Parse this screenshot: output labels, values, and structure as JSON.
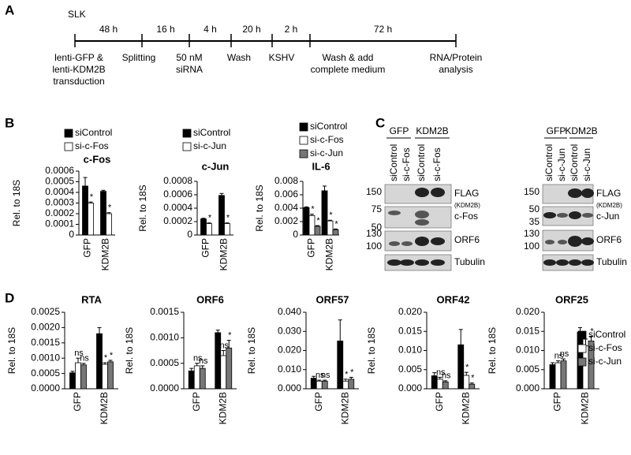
{
  "panels": [
    "A",
    "B",
    "C",
    "D"
  ],
  "timeline": {
    "cell_line": "SLK",
    "durations": [
      "48 h",
      "16 h",
      "4 h",
      "20 h",
      "2 h",
      "72 h"
    ],
    "steps": [
      {
        "lines": [
          "lenti-GFP &",
          "lenti-KDM2B",
          "transduction"
        ]
      },
      {
        "lines": [
          "Splitting"
        ]
      },
      {
        "lines": [
          "50 nM",
          "siRNA"
        ]
      },
      {
        "lines": [
          "Wash"
        ]
      },
      {
        "lines": [
          "KSHV"
        ]
      },
      {
        "lines": [
          "Wash & add",
          "complete medium"
        ]
      },
      {
        "lines": [
          "RNA/Protein",
          "analysis"
        ]
      }
    ]
  },
  "blots": [
    {
      "groups": [
        "GFP",
        "KDM2B"
      ],
      "lanes": [
        "siControl",
        "si-c-Fos",
        "siControl",
        "si-c-Fos"
      ],
      "rows": [
        {
          "label": "FLAG",
          "sublabel": "(KDM2B)",
          "markers": [
            "150"
          ]
        },
        {
          "label": "c-Fos",
          "markers": [
            "75",
            "50"
          ]
        },
        {
          "label": "ORF6",
          "markers": [
            "130",
            "100"
          ]
        },
        {
          "label": "Tubulin",
          "markers": []
        }
      ]
    },
    {
      "groups": [
        "GFP",
        "KDM2B"
      ],
      "lanes": [
        "siControl",
        "si-c-Jun",
        "siControl",
        "si-c-Jun"
      ],
      "rows": [
        {
          "label": "FLAG",
          "sublabel": "(KDM2B)",
          "markers": [
            "150"
          ]
        },
        {
          "label": "c-Jun",
          "markers": [
            "50",
            "35"
          ]
        },
        {
          "label": "ORF6",
          "markers": [
            "130",
            "100"
          ]
        },
        {
          "label": "Tubulin",
          "markers": []
        }
      ]
    }
  ],
  "chart_data": [
    {
      "type": "bar",
      "title": "c-Fos",
      "ylabel": "Rel. to 18S",
      "categories": [
        "GFP",
        "KDM2B"
      ],
      "legend": "top",
      "ylim": [
        0,
        0.0006
      ],
      "yticks": [
        0,
        0.0001,
        0.0002,
        0.0003,
        0.0004,
        0.0005,
        0.0006
      ],
      "series": [
        {
          "name": "siControl",
          "color": "#000000",
          "values": [
            0.00046,
            0.00041
          ],
          "errors": [
            8e-05,
            1e-05
          ],
          "annotations": [
            null,
            null
          ]
        },
        {
          "name": "si-c-Fos",
          "color": "#ffffff",
          "values": [
            0.0003,
            0.0002
          ],
          "errors": [
            1e-05,
            1e-05
          ],
          "annotations": [
            "*",
            "*"
          ]
        }
      ]
    },
    {
      "type": "bar",
      "title": "c-Jun",
      "ylabel": "Rel. to 18S",
      "categories": [
        "GFP",
        "KDM2B"
      ],
      "legend": "top",
      "ylim": [
        0,
        0.0008
      ],
      "yticks": [
        0,
        0.0002,
        0.0004,
        0.0006,
        0.0008
      ],
      "series": [
        {
          "name": "siControl",
          "color": "#000000",
          "values": [
            0.00024,
            0.00059
          ],
          "errors": [
            1e-05,
            3e-05
          ],
          "annotations": [
            null,
            null
          ]
        },
        {
          "name": "si-c-Jun",
          "color": "#ffffff",
          "values": [
            0.00017,
            0.00017
          ],
          "errors": [
            1e-05,
            1e-05
          ],
          "annotations": [
            "*",
            "*"
          ]
        }
      ]
    },
    {
      "type": "bar",
      "title": "IL-6",
      "ylabel": "Rel. to 18S",
      "categories": [
        "GFP",
        "KDM2B"
      ],
      "legend": "top",
      "ylim": [
        0,
        0.008
      ],
      "yticks": [
        0,
        0.002,
        0.004,
        0.006,
        0.008
      ],
      "series": [
        {
          "name": "siControl",
          "color": "#000000",
          "values": [
            0.0041,
            0.0066
          ],
          "errors": [
            0.0001,
            0.0007
          ],
          "annotations": [
            null,
            null
          ]
        },
        {
          "name": "si-c-Fos",
          "color": "#ffffff",
          "values": [
            0.0029,
            0.0021
          ],
          "errors": [
            0.0002,
            0.0001
          ],
          "annotations": [
            "*",
            "*"
          ]
        },
        {
          "name": "si-c-Jun",
          "color": "#777777",
          "values": [
            0.0013,
            0.0008
          ],
          "errors": [
            0.0001,
            0.0001
          ],
          "annotations": [
            "*",
            "*"
          ]
        }
      ]
    },
    {
      "type": "bar",
      "title": "RTA",
      "ylabel": "Rel. to 18S",
      "categories": [
        "GFP",
        "KDM2B"
      ],
      "ylim": [
        0,
        0.0025
      ],
      "yticks": [
        {
          "value": 0,
          "label": "0.0000"
        },
        0.0005,
        {
          "value": 0.001,
          "label": "0.0010"
        },
        0.0015,
        {
          "value": 0.002,
          "label": "0.0020"
        },
        0.0025
      ],
      "series": [
        {
          "name": "siControl",
          "color": "#000000",
          "values": [
            0.00052,
            0.0018
          ],
          "errors": [
            5e-05,
            0.0002
          ],
          "annotations": [
            null,
            null
          ]
        },
        {
          "name": "si-c-Fos",
          "color": "#ffffff",
          "values": [
            0.00085,
            0.0008
          ],
          "errors": [
            0.00015,
            5e-05
          ],
          "annotations": [
            "ns",
            "*"
          ]
        },
        {
          "name": "si-c-Jun",
          "color": "#777777",
          "values": [
            0.00078,
            0.00088
          ],
          "errors": [
            5e-05,
            5e-05
          ],
          "annotations": [
            "ns",
            "*"
          ]
        }
      ]
    },
    {
      "type": "bar",
      "title": "ORF6",
      "ylabel": "Rel. to 18S",
      "categories": [
        "GFP",
        "KDM2B"
      ],
      "ylim": [
        0,
        0.0015
      ],
      "yticks": [
        {
          "value": 0,
          "label": "0.0000"
        },
        0.0005,
        {
          "value": 0.001,
          "label": "0.0010"
        },
        0.0015
      ],
      "series": [
        {
          "name": "siControl",
          "color": "#000000",
          "values": [
            0.00035,
            0.0011
          ],
          "errors": [
            5e-05,
            5e-05
          ],
          "annotations": [
            null,
            null
          ]
        },
        {
          "name": "si-c-Fos",
          "color": "#ffffff",
          "values": [
            0.00045,
            0.00065
          ],
          "errors": [
            5e-05,
            0.0001
          ],
          "annotations": [
            "ns",
            "ns"
          ]
        },
        {
          "name": "si-c-Jun",
          "color": "#777777",
          "values": [
            0.0004,
            0.0008
          ],
          "errors": [
            5e-05,
            0.00015
          ],
          "annotations": [
            "ns",
            "*"
          ]
        }
      ]
    },
    {
      "type": "bar",
      "title": "ORF57",
      "ylabel": "Rel. to 18S",
      "categories": [
        "GFP",
        "KDM2B"
      ],
      "ylim": [
        0,
        0.04
      ],
      "yticks": [
        {
          "value": 0,
          "label": "0.000"
        },
        {
          "value": 0.01,
          "label": "0.010"
        },
        {
          "value": 0.02,
          "label": "0.020"
        },
        {
          "value": 0.03,
          "label": "0.030"
        },
        {
          "value": 0.04,
          "label": "0.040"
        }
      ],
      "series": [
        {
          "name": "siControl",
          "color": "#000000",
          "values": [
            0.0055,
            0.025
          ],
          "errors": [
            0.001,
            0.011
          ],
          "annotations": [
            null,
            null
          ]
        },
        {
          "name": "si-c-Fos",
          "color": "#ffffff",
          "values": [
            0.004,
            0.004
          ],
          "errors": [
            0.0005,
            0.001
          ],
          "annotations": [
            "ns",
            "*"
          ]
        },
        {
          "name": "si-c-Jun",
          "color": "#777777",
          "values": [
            0.004,
            0.005
          ],
          "errors": [
            0.0005,
            0.001
          ],
          "annotations": [
            "ns",
            "*"
          ]
        }
      ]
    },
    {
      "type": "bar",
      "title": "ORF42",
      "ylabel": "Rel. to 18S",
      "categories": [
        "GFP",
        "KDM2B"
      ],
      "ylim": [
        0,
        0.02
      ],
      "yticks": [
        {
          "value": 0,
          "label": "0.000"
        },
        0.005,
        {
          "value": 0.01,
          "label": "0.010"
        },
        0.015,
        {
          "value": 0.02,
          "label": "0.020"
        }
      ],
      "series": [
        {
          "name": "siControl",
          "color": "#000000",
          "values": [
            0.0034,
            0.0115
          ],
          "errors": [
            0.0008,
            0.004
          ],
          "annotations": [
            null,
            null
          ]
        },
        {
          "name": "si-c-Fos",
          "color": "#ffffff",
          "values": [
            0.0025,
            0.0035
          ],
          "errors": [
            0.0005,
            0.0008
          ],
          "annotations": [
            "ns",
            "*"
          ]
        },
        {
          "name": "si-c-Jun",
          "color": "#777777",
          "values": [
            0.0018,
            0.0012
          ],
          "errors": [
            0.0003,
            0.0003
          ],
          "annotations": [
            "ns",
            "*"
          ]
        }
      ]
    },
    {
      "type": "bar",
      "title": "ORF25",
      "ylabel": "Rel. to 18S",
      "categories": [
        "GFP",
        "KDM2B"
      ],
      "legend": "right",
      "ylim": [
        0,
        0.02
      ],
      "yticks": [
        {
          "value": 0,
          "label": "0.000"
        },
        0.005,
        {
          "value": 0.01,
          "label": "0.010"
        },
        0.015,
        {
          "value": 0.02,
          "label": "0.020"
        }
      ],
      "series": [
        {
          "name": "siControl",
          "color": "#000000",
          "values": [
            0.0063,
            0.0148
          ],
          "errors": [
            0.0005,
            0.0012
          ],
          "annotations": [
            null,
            null
          ]
        },
        {
          "name": "si-c-Fos",
          "color": "#ffffff",
          "values": [
            0.0068,
            0.0112
          ],
          "errors": [
            0.0005,
            0.0018
          ],
          "annotations": [
            "ns",
            null
          ]
        },
        {
          "name": "si-c-Jun",
          "color": "#777777",
          "values": [
            0.0073,
            0.0125
          ],
          "errors": [
            0.0005,
            0.0012
          ],
          "annotations": [
            "ns",
            "*"
          ]
        }
      ]
    }
  ]
}
